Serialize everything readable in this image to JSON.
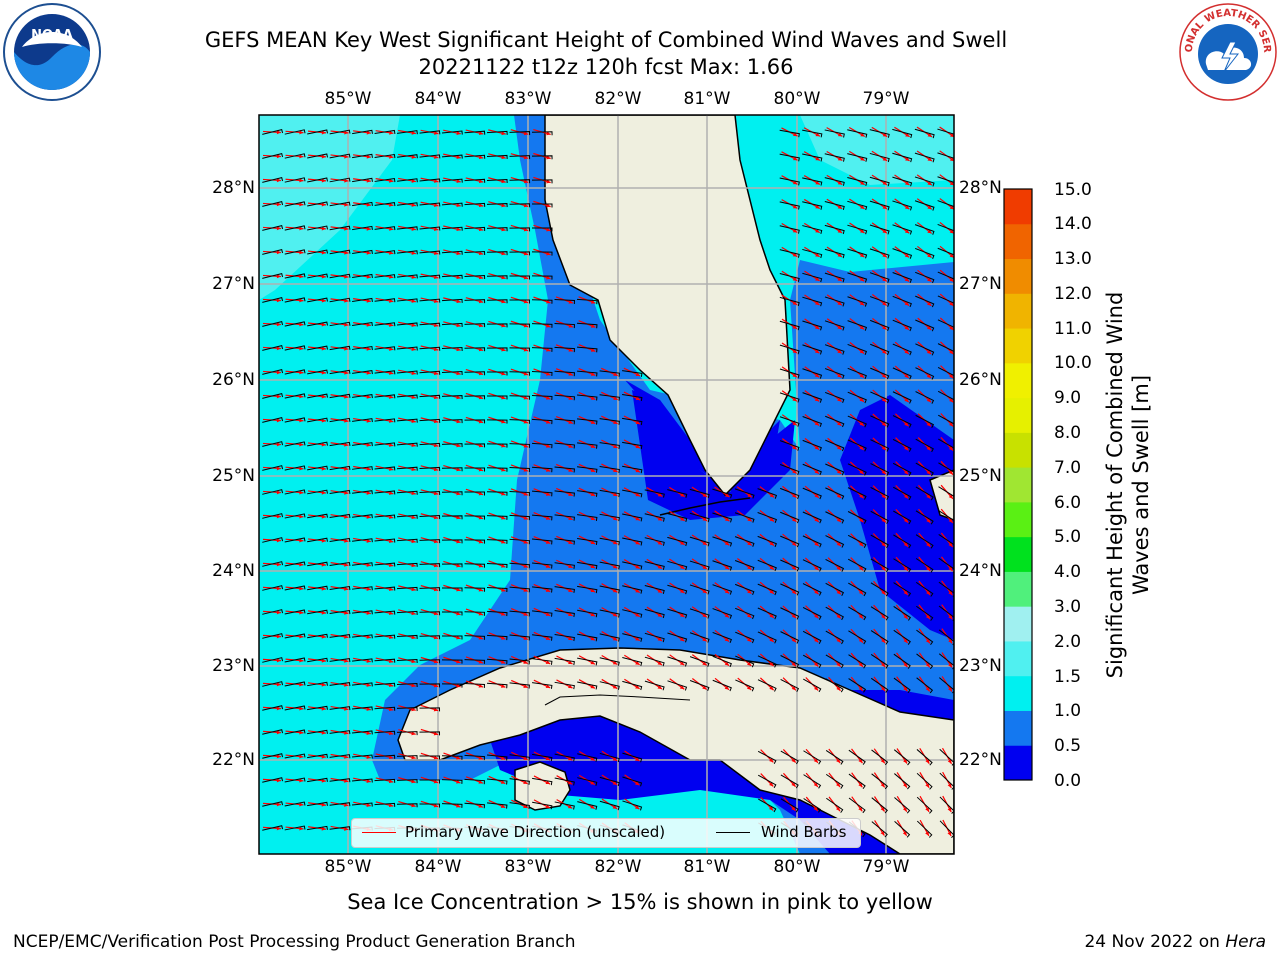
{
  "title": {
    "line1": "GEFS MEAN Key West Significant Height of Combined Wind Waves and Swell",
    "line2": "20221122 t12z 120h fcst   Max: 1.66"
  },
  "axes": {
    "lon_labels": [
      "85°W",
      "84°W",
      "83°W",
      "82°W",
      "81°W",
      "80°W",
      "79°W"
    ],
    "lat_labels": [
      "28°N",
      "27°N",
      "26°N",
      "25°N",
      "24°N",
      "23°N",
      "22°N"
    ]
  },
  "colorbar": {
    "title": "Significant Height of Combined Wind Waves and Swell [m]",
    "tick_labels": [
      "0.0",
      "0.5",
      "1.0",
      "1.5",
      "2.0",
      "3.0",
      "4.0",
      "5.0",
      "6.0",
      "7.0",
      "8.0",
      "9.0",
      "10.0",
      "11.0",
      "12.0",
      "13.0",
      "14.0",
      "15.0"
    ],
    "colors": [
      "#0000f0",
      "#1478f0",
      "#00f0f0",
      "#50f0f0",
      "#a0f0f0",
      "#50f07c",
      "#00e11e",
      "#5af014",
      "#a0e632",
      "#c8e100",
      "#e6f000",
      "#f0f000",
      "#f0d200",
      "#f0b400",
      "#f08c00",
      "#f06400",
      "#f03c00",
      "#f00000"
    ]
  },
  "legend": {
    "primary_wave": "Primary Wave Direction (unscaled)",
    "wind_barbs": "Wind Barbs"
  },
  "map_colors": {
    "land": "#efefdf",
    "grid": "#b0b0b0",
    "arrow": "#ff0000",
    "barb": "#000000"
  },
  "footnote": "Sea Ice Concentration > 15% is shown in pink to yellow",
  "credit": "NCEP/EMC/Verification Post Processing Product Generation Branch",
  "date": {
    "prefix": "24 Nov 2022 on ",
    "machine": "Hera"
  },
  "logos": {
    "noaa": "NOAA",
    "nws": "NATIONAL WEATHER SERVICE"
  }
}
